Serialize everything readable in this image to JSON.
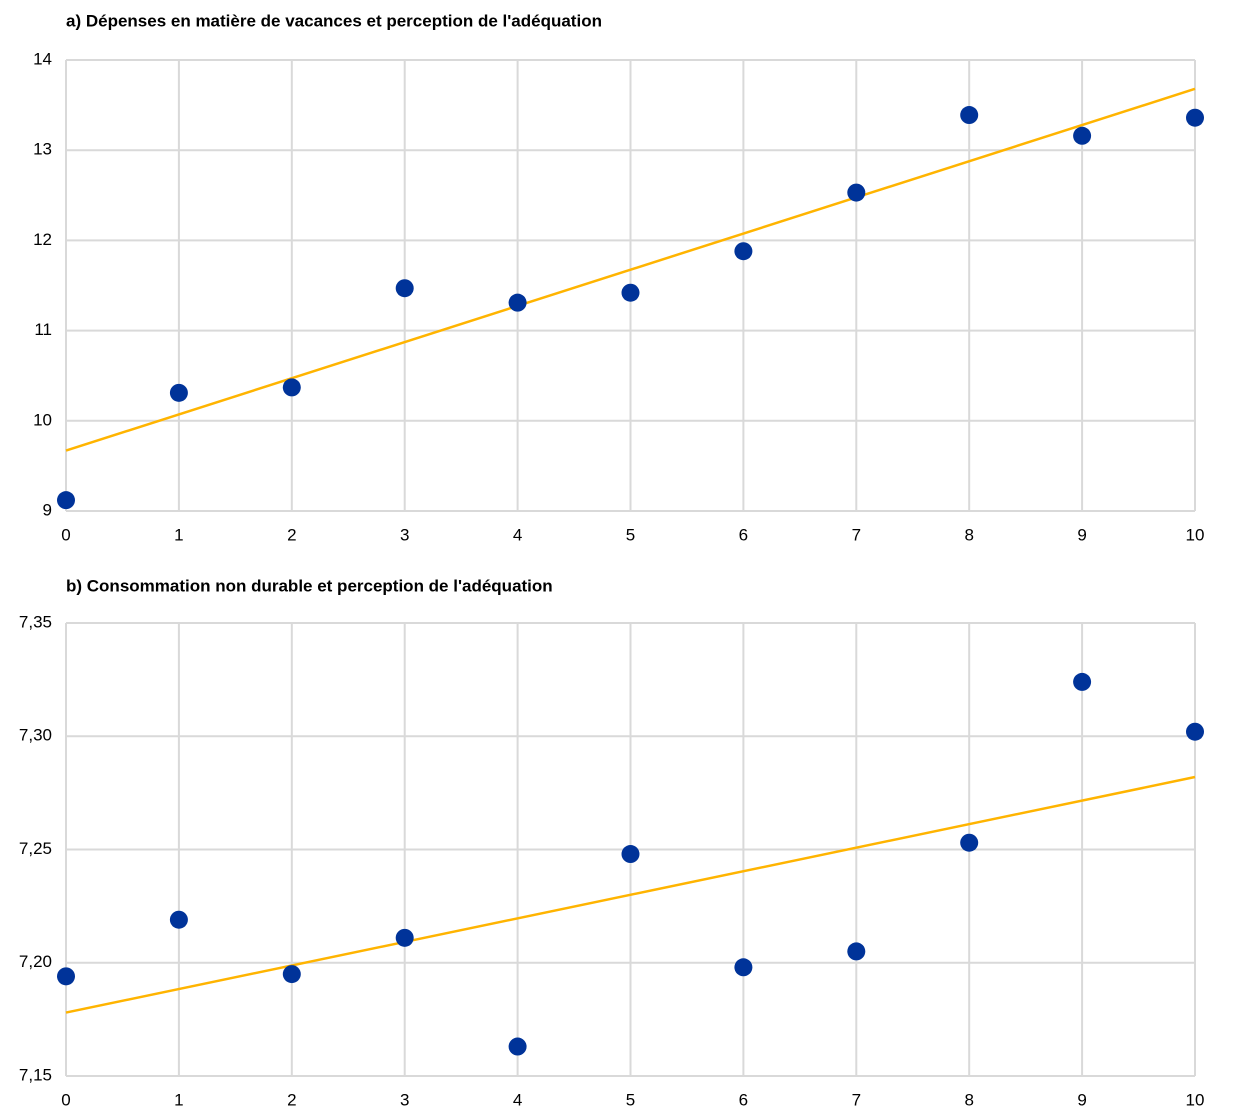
{
  "chart_data": [
    {
      "type": "scatter",
      "title": "a) Dépenses en matière de vacances et perception de l'adéquation",
      "x": [
        0,
        1,
        2,
        3,
        4,
        5,
        6,
        7,
        8,
        9,
        10
      ],
      "series": [
        {
          "color": "#003399",
          "values": [
            9.12,
            10.31,
            10.37,
            11.47,
            11.31,
            11.42,
            11.88,
            12.53,
            13.39,
            13.16,
            13.36
          ]
        }
      ],
      "trendline": {
        "color": "#ffb400",
        "x": [
          0,
          10
        ],
        "values": [
          9.67,
          13.68
        ]
      },
      "xlim": [
        0,
        10
      ],
      "xticks": [
        0,
        1,
        2,
        3,
        4,
        5,
        6,
        7,
        8,
        9,
        10
      ],
      "ylim": [
        9,
        14
      ],
      "yticks": [
        9,
        10,
        11,
        12,
        13,
        14
      ],
      "grid": true
    },
    {
      "type": "scatter",
      "title": "b) Consommation non durable et perception de l'adéquation",
      "x": [
        0,
        1,
        2,
        3,
        4,
        5,
        6,
        7,
        8,
        9,
        10
      ],
      "series": [
        {
          "color": "#003399",
          "values": [
            7.194,
            7.219,
            7.195,
            7.211,
            7.163,
            7.248,
            7.198,
            7.205,
            7.253,
            7.324,
            7.302
          ]
        }
      ],
      "trendline": {
        "color": "#ffb400",
        "x": [
          0,
          10
        ],
        "values": [
          7.178,
          7.282
        ]
      },
      "xlim": [
        0,
        10
      ],
      "xticks": [
        0,
        1,
        2,
        3,
        4,
        5,
        6,
        7,
        8,
        9,
        10
      ],
      "ylim": [
        7.15,
        7.35
      ],
      "yticks": [
        {
          "value": 7.15,
          "label": "7,15"
        },
        {
          "value": 7.2,
          "label": "7,20"
        },
        {
          "value": 7.25,
          "label": "7,25"
        },
        {
          "value": 7.3,
          "label": "7,30"
        },
        {
          "value": 7.35,
          "label": "7,35"
        }
      ],
      "grid": true
    }
  ]
}
